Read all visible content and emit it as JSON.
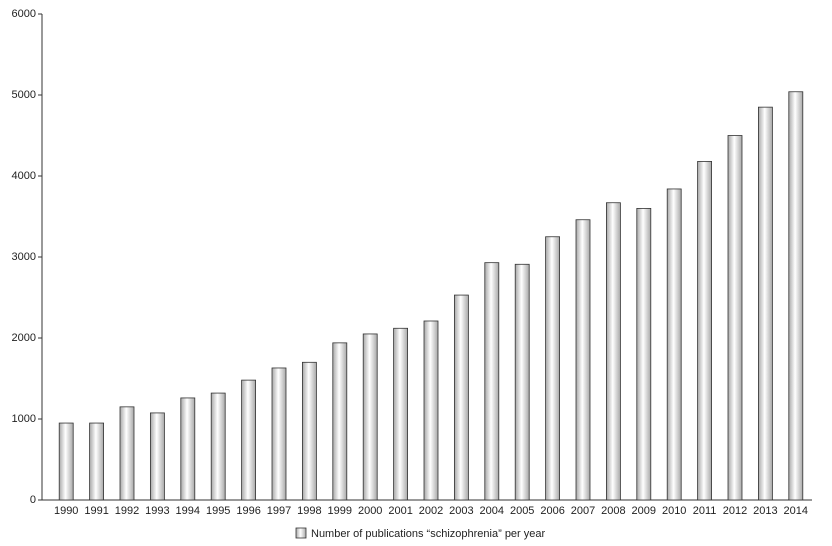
{
  "chart_data": {
    "type": "bar",
    "categories": [
      "1990",
      "1991",
      "1992",
      "1993",
      "1994",
      "1995",
      "1996",
      "1997",
      "1998",
      "1999",
      "2000",
      "2001",
      "2002",
      "2003",
      "2004",
      "2005",
      "2006",
      "2007",
      "2008",
      "2009",
      "2010",
      "2011",
      "2012",
      "2013",
      "2014"
    ],
    "series": [
      {
        "name": "Number of publications “schizophrenia” per year",
        "color": "#a8a8a8",
        "values": [
          950,
          950,
          1150,
          1075,
          1260,
          1320,
          1480,
          1630,
          1700,
          1940,
          2050,
          2120,
          2210,
          2530,
          2930,
          2910,
          3250,
          3460,
          3670,
          3600,
          3840,
          4180,
          4500,
          4850,
          5040
        ]
      }
    ],
    "ylim": [
      0,
      6000
    ],
    "yticks": [
      0,
      1000,
      2000,
      3000,
      4000,
      5000,
      6000
    ],
    "grid": false,
    "legend": "bottom"
  }
}
